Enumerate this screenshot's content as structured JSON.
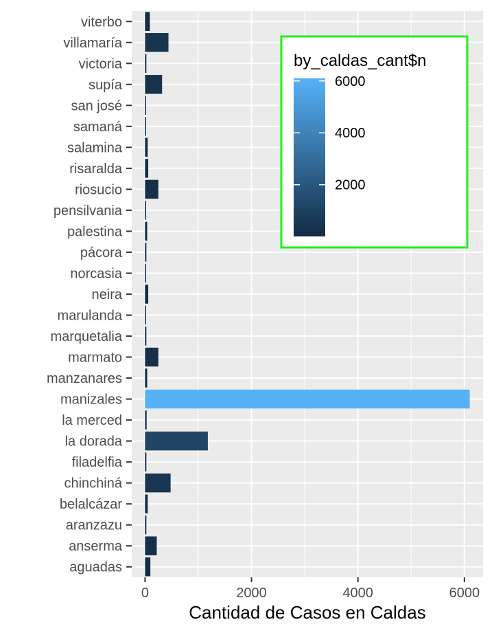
{
  "chart_data": {
    "type": "bar",
    "orientation": "horizontal",
    "xlabel": "Cantidad de Casos en Caldas",
    "ylabel": "",
    "xlim": [
      -250,
      6350
    ],
    "xticks": [
      0,
      2000,
      4000,
      6000
    ],
    "grid": true,
    "legend": {
      "title": "by_caldas_cant$n",
      "type": "colorbar",
      "placement": "top-right",
      "ticks": [
        2000,
        4000,
        6000
      ],
      "color_low": "#132B43",
      "color_high": "#56B1F7"
    },
    "categories": [
      "aguadas",
      "anserma",
      "aranzazu",
      "belalcázar",
      "chinchiná",
      "filadelfia",
      "la dorada",
      "la merced",
      "manizales",
      "manzanares",
      "marmato",
      "marquetalia",
      "marulanda",
      "neira",
      "norcasia",
      "pácora",
      "palestina",
      "pensilvania",
      "riosucio",
      "risaralda",
      "salamina",
      "samaná",
      "san josé",
      "supía",
      "victoria",
      "villamaría",
      "viterbo"
    ],
    "values": [
      100,
      220,
      25,
      50,
      480,
      25,
      1180,
      30,
      6100,
      40,
      250,
      25,
      5,
      60,
      15,
      25,
      40,
      20,
      250,
      60,
      50,
      15,
      15,
      320,
      25,
      440,
      90
    ]
  }
}
